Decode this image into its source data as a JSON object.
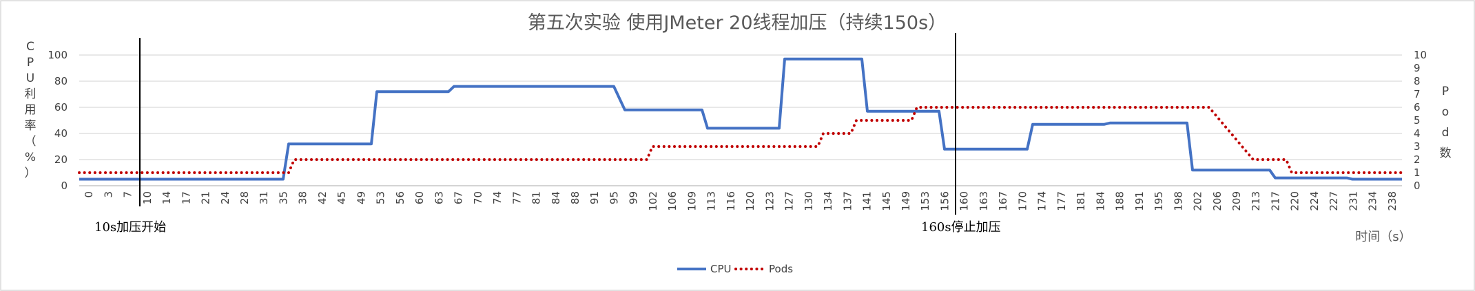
{
  "chart_data": {
    "type": "line",
    "title": "第五次实验 使用JMeter 20线程加压（持续150s）",
    "xlabel": "时间（s）",
    "ylabel_left": "CPU利用率（%）",
    "ylabel_right": "Pod数",
    "ylim_left": [
      0,
      100
    ],
    "ylim_right": [
      0,
      10
    ],
    "yticks_left": [
      0,
      20,
      40,
      60,
      80,
      100
    ],
    "yticks_right": [
      0,
      1,
      2,
      3,
      4,
      5,
      6,
      7,
      8,
      9,
      10
    ],
    "x_range": [
      0,
      240
    ],
    "grid": true,
    "legend_position": "bottom",
    "xtick_labels": [
      "0",
      "3",
      "7",
      "10",
      "14",
      "17",
      "21",
      "24",
      "28",
      "31",
      "35",
      "38",
      "42",
      "45",
      "49",
      "53",
      "56",
      "60",
      "63",
      "67",
      "70",
      "74",
      "77",
      "81",
      "84",
      "88",
      "91",
      "95",
      "99",
      "102",
      "106",
      "109",
      "113",
      "116",
      "120",
      "123",
      "127",
      "130",
      "134",
      "137",
      "141",
      "145",
      "149",
      "153",
      "156",
      "160",
      "163",
      "167",
      "170",
      "174",
      "177",
      "181",
      "184",
      "188",
      "191",
      "195",
      "198",
      "202",
      "206",
      "209",
      "213",
      "217",
      "220",
      "224",
      "227",
      "231",
      "234",
      "238"
    ],
    "series": [
      {
        "name": "CPU",
        "axis": "left",
        "color": "#4472C4",
        "style": "solid",
        "points": [
          [
            0,
            5
          ],
          [
            37,
            5
          ],
          [
            38,
            32
          ],
          [
            53,
            32
          ],
          [
            54,
            72
          ],
          [
            67,
            72
          ],
          [
            68,
            76
          ],
          [
            97,
            76
          ],
          [
            99,
            58
          ],
          [
            113,
            58
          ],
          [
            114,
            44
          ],
          [
            127,
            44
          ],
          [
            128,
            97
          ],
          [
            142,
            97
          ],
          [
            143,
            57
          ],
          [
            156,
            57
          ],
          [
            157,
            28
          ],
          [
            172,
            28
          ],
          [
            173,
            47
          ],
          [
            186,
            47
          ],
          [
            187,
            48
          ],
          [
            201,
            48
          ],
          [
            202,
            12
          ],
          [
            216,
            12
          ],
          [
            217,
            6
          ],
          [
            230,
            6
          ],
          [
            231,
            5
          ],
          [
            240,
            5
          ]
        ]
      },
      {
        "name": "Pods",
        "axis": "right",
        "color": "#C00000",
        "style": "dotted",
        "points": [
          [
            0,
            1
          ],
          [
            38,
            1
          ],
          [
            39,
            2
          ],
          [
            61,
            2
          ],
          [
            62,
            2
          ],
          [
            103,
            2
          ],
          [
            104,
            3
          ],
          [
            134,
            3
          ],
          [
            135,
            4
          ],
          [
            140,
            4
          ],
          [
            141,
            5
          ],
          [
            151,
            5
          ],
          [
            152,
            6
          ],
          [
            205,
            6
          ],
          [
            209,
            4
          ],
          [
            213,
            2
          ],
          [
            219,
            2
          ],
          [
            220,
            1
          ],
          [
            240,
            1
          ]
        ]
      }
    ],
    "annotations": [
      {
        "label": "10s加压开始",
        "x": 11
      },
      {
        "label": "160s停止加压",
        "x": 159
      }
    ]
  }
}
